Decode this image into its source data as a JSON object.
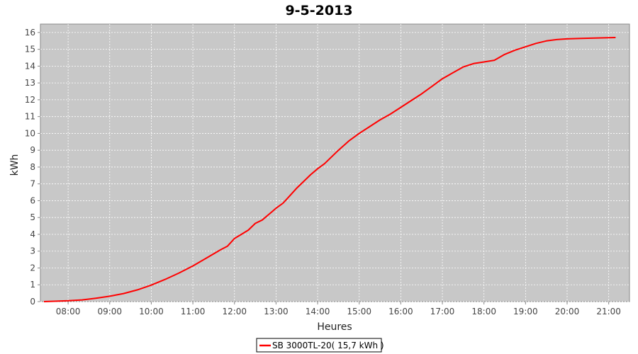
{
  "chart_data": {
    "type": "line",
    "title": "9-5-2013",
    "xlabel": "Heures",
    "ylabel": "kWh",
    "xlim": [
      "07:20",
      "21:30"
    ],
    "ylim": [
      0,
      16.5
    ],
    "x_ticks": [
      "08:00",
      "09:00",
      "10:00",
      "11:00",
      "12:00",
      "13:00",
      "14:00",
      "15:00",
      "16:00",
      "17:00",
      "18:00",
      "19:00",
      "20:00",
      "21:00"
    ],
    "y_ticks": [
      0,
      1,
      2,
      3,
      4,
      5,
      6,
      7,
      8,
      9,
      10,
      11,
      12,
      13,
      14,
      15,
      16
    ],
    "grid": true,
    "legend_position": "bottom-center",
    "background_color": "#c8c8c8",
    "series": [
      {
        "name": "SB 3000TL-20( 15,7 kWh )",
        "color": "#ff0000",
        "x": [
          "07:25",
          "07:40",
          "08:00",
          "08:20",
          "08:40",
          "09:00",
          "09:20",
          "09:40",
          "10:00",
          "10:20",
          "10:40",
          "11:00",
          "11:20",
          "11:40",
          "11:50",
          "12:00",
          "12:10",
          "12:20",
          "12:30",
          "12:40",
          "12:50",
          "13:00",
          "13:10",
          "13:20",
          "13:30",
          "13:40",
          "13:50",
          "14:00",
          "14:10",
          "14:20",
          "14:30",
          "14:45",
          "15:00",
          "15:15",
          "15:30",
          "15:45",
          "16:00",
          "16:15",
          "16:30",
          "16:45",
          "17:00",
          "17:15",
          "17:30",
          "17:45",
          "18:00",
          "18:15",
          "18:30",
          "18:45",
          "19:00",
          "19:15",
          "19:30",
          "19:45",
          "20:00",
          "20:20",
          "20:40",
          "21:00",
          "21:10"
        ],
        "values": [
          0.0,
          0.02,
          0.05,
          0.1,
          0.2,
          0.32,
          0.48,
          0.7,
          0.98,
          1.32,
          1.7,
          2.12,
          2.6,
          3.08,
          3.3,
          3.75,
          4.0,
          4.25,
          4.65,
          4.85,
          5.2,
          5.55,
          5.85,
          6.3,
          6.75,
          7.15,
          7.55,
          7.9,
          8.2,
          8.6,
          9.0,
          9.55,
          10.0,
          10.4,
          10.8,
          11.15,
          11.55,
          11.95,
          12.35,
          12.8,
          13.25,
          13.6,
          13.95,
          14.15,
          14.25,
          14.35,
          14.7,
          14.95,
          15.15,
          15.35,
          15.5,
          15.58,
          15.62,
          15.65,
          15.67,
          15.69,
          15.7
        ]
      }
    ]
  }
}
